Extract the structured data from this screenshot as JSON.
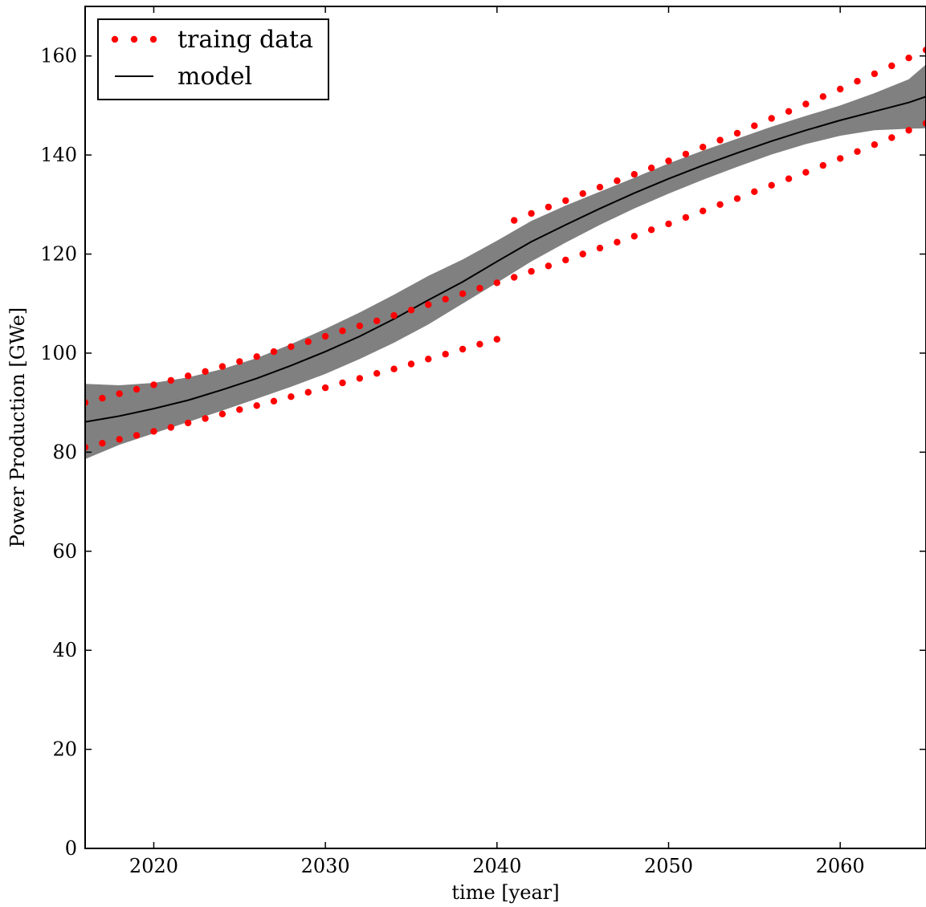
{
  "chart_data": {
    "type": "line",
    "title": "",
    "xlabel": "time [year]",
    "ylabel": "Power Production [GWe]",
    "xlim": [
      2016,
      2065
    ],
    "ylim": [
      0,
      170
    ],
    "xticks": [
      2020,
      2030,
      2040,
      2050,
      2060
    ],
    "yticks": [
      0,
      20,
      40,
      60,
      80,
      100,
      120,
      140,
      160
    ],
    "grid": false,
    "legend_position": "top-left",
    "colors": {
      "training": "#ff0000",
      "model": "#000000",
      "band": "#808080"
    },
    "series": [
      {
        "name": "traing data",
        "kind": "scatter",
        "points": [
          [
            2016,
            90.0
          ],
          [
            2017,
            90.9
          ],
          [
            2018,
            91.8
          ],
          [
            2019,
            92.7
          ],
          [
            2020,
            93.6
          ],
          [
            2021,
            94.5
          ],
          [
            2022,
            95.4
          ],
          [
            2023,
            96.3
          ],
          [
            2024,
            97.3
          ],
          [
            2025,
            98.3
          ],
          [
            2026,
            99.3
          ],
          [
            2027,
            100.3
          ],
          [
            2028,
            101.3
          ],
          [
            2029,
            102.3
          ],
          [
            2030,
            103.4
          ],
          [
            2031,
            104.5
          ],
          [
            2032,
            105.5
          ],
          [
            2033,
            106.5
          ],
          [
            2034,
            107.6
          ],
          [
            2035,
            108.7
          ],
          [
            2036,
            109.8
          ],
          [
            2037,
            110.9
          ],
          [
            2038,
            112.0
          ],
          [
            2039,
            113.1
          ],
          [
            2040,
            114.2
          ],
          [
            2016,
            81.0
          ],
          [
            2017,
            81.8
          ],
          [
            2018,
            82.6
          ],
          [
            2019,
            83.4
          ],
          [
            2020,
            84.2
          ],
          [
            2021,
            85.0
          ],
          [
            2022,
            85.9
          ],
          [
            2023,
            86.8
          ],
          [
            2024,
            87.7
          ],
          [
            2025,
            88.6
          ],
          [
            2026,
            89.4
          ],
          [
            2027,
            90.3
          ],
          [
            2028,
            91.2
          ],
          [
            2029,
            92.1
          ],
          [
            2030,
            93.0
          ],
          [
            2031,
            94.0
          ],
          [
            2032,
            94.9
          ],
          [
            2033,
            95.9
          ],
          [
            2034,
            96.8
          ],
          [
            2035,
            97.8
          ],
          [
            2036,
            98.8
          ],
          [
            2037,
            99.8
          ],
          [
            2038,
            100.8
          ],
          [
            2039,
            101.8
          ],
          [
            2040,
            102.8
          ],
          [
            2041,
            126.8
          ],
          [
            2042,
            128.2
          ],
          [
            2043,
            129.5
          ],
          [
            2044,
            130.8
          ],
          [
            2045,
            132.2
          ],
          [
            2046,
            133.5
          ],
          [
            2047,
            134.8
          ],
          [
            2048,
            136.1
          ],
          [
            2049,
            137.4
          ],
          [
            2050,
            138.8
          ],
          [
            2051,
            140.2
          ],
          [
            2052,
            141.6
          ],
          [
            2053,
            143.0
          ],
          [
            2054,
            144.4
          ],
          [
            2055,
            145.9
          ],
          [
            2056,
            147.4
          ],
          [
            2057,
            148.8
          ],
          [
            2058,
            150.3
          ],
          [
            2059,
            151.8
          ],
          [
            2060,
            153.3
          ],
          [
            2061,
            154.9
          ],
          [
            2062,
            156.4
          ],
          [
            2063,
            158.0
          ],
          [
            2064,
            159.6
          ],
          [
            2065,
            161.2
          ],
          [
            2041,
            115.3
          ],
          [
            2042,
            116.5
          ],
          [
            2043,
            117.6
          ],
          [
            2044,
            118.8
          ],
          [
            2045,
            120.0
          ],
          [
            2046,
            121.2
          ],
          [
            2047,
            122.4
          ],
          [
            2048,
            123.6
          ],
          [
            2049,
            124.9
          ],
          [
            2050,
            126.1
          ],
          [
            2051,
            127.4
          ],
          [
            2052,
            128.7
          ],
          [
            2053,
            130.0
          ],
          [
            2054,
            131.2
          ],
          [
            2055,
            132.6
          ],
          [
            2056,
            133.9
          ],
          [
            2057,
            135.2
          ],
          [
            2058,
            136.5
          ],
          [
            2059,
            137.9
          ],
          [
            2060,
            139.3
          ],
          [
            2061,
            140.7
          ],
          [
            2062,
            142.1
          ],
          [
            2063,
            143.5
          ],
          [
            2064,
            145.0
          ],
          [
            2065,
            146.4
          ]
        ]
      },
      {
        "name": "model",
        "kind": "line",
        "x": [
          2016,
          2018,
          2020,
          2022,
          2024,
          2026,
          2028,
          2030,
          2032,
          2034,
          2036,
          2038,
          2040,
          2042,
          2044,
          2046,
          2048,
          2050,
          2052,
          2054,
          2056,
          2058,
          2060,
          2062,
          2064,
          2065
        ],
        "y": [
          86.1,
          87.3,
          88.8,
          90.5,
          92.6,
          94.9,
          97.5,
          100.3,
          103.4,
          106.9,
          110.7,
          114.4,
          118.5,
          122.5,
          125.9,
          129.2,
          132.3,
          135.2,
          137.9,
          140.4,
          142.8,
          145.0,
          147.0,
          148.8,
          150.6,
          151.8
        ],
        "lower": [
          78.6,
          81.5,
          83.8,
          86.1,
          88.4,
          90.8,
          93.2,
          95.8,
          98.8,
          102.1,
          105.8,
          110.0,
          114.2,
          118.5,
          122.3,
          125.9,
          129.2,
          132.2,
          135.0,
          137.6,
          140.1,
          142.2,
          143.9,
          145.0,
          145.3,
          145.4
        ],
        "upper": [
          93.8,
          93.5,
          94.0,
          95.1,
          96.8,
          99.0,
          101.8,
          104.9,
          108.2,
          111.8,
          115.6,
          118.9,
          122.7,
          126.7,
          129.8,
          132.6,
          135.4,
          138.3,
          140.9,
          143.3,
          145.7,
          147.9,
          150.0,
          152.5,
          155.3,
          158.3
        ]
      }
    ]
  }
}
